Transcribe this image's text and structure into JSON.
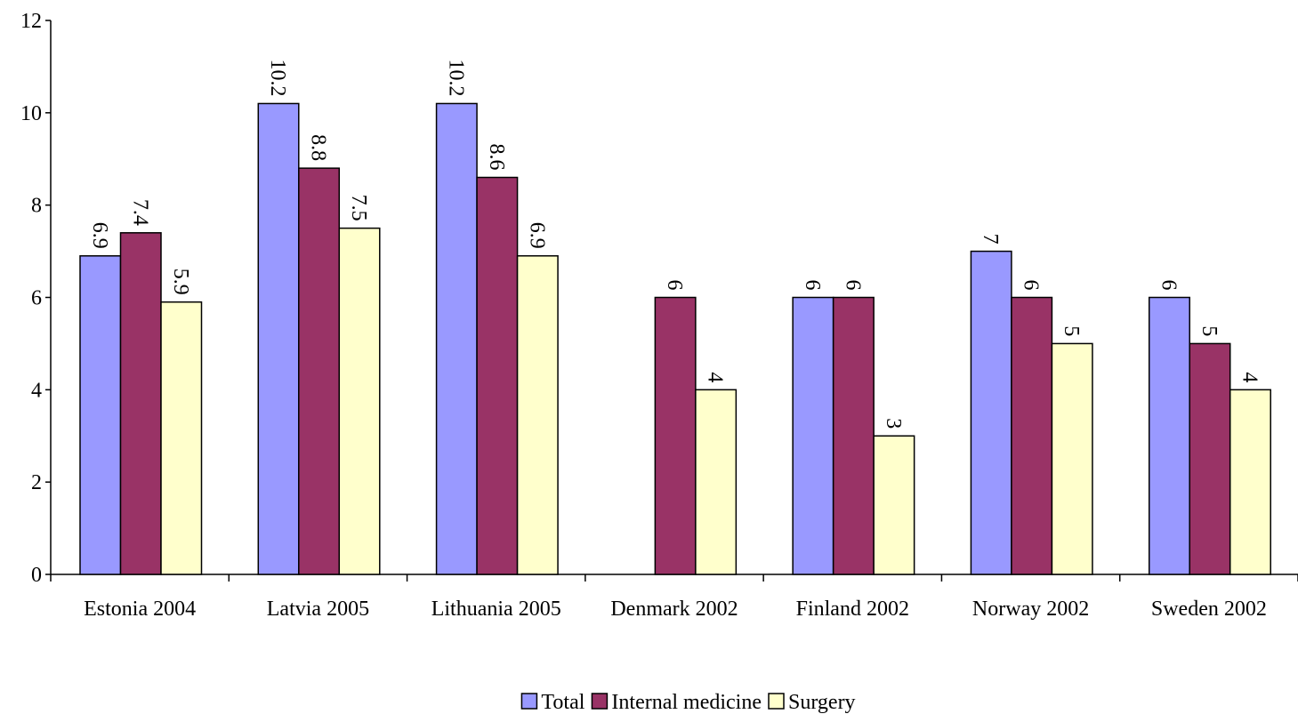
{
  "chart_data": {
    "type": "bar",
    "categories": [
      "Estonia 2004",
      "Latvia 2005",
      "Lithuania 2005",
      "Denmark 2002",
      "Finland 2002",
      "Norway 2002",
      "Sweden 2002"
    ],
    "series": [
      {
        "name": "Total",
        "color": "#9999ff",
        "values": [
          6.9,
          10.2,
          10.2,
          null,
          6,
          7,
          6
        ]
      },
      {
        "name": "Internal medicine",
        "color": "#993366",
        "values": [
          7.4,
          8.8,
          8.6,
          6,
          6,
          6,
          5
        ]
      },
      {
        "name": "Surgery",
        "color": "#ffffcc",
        "values": [
          5.9,
          7.5,
          6.9,
          4,
          3,
          5,
          4
        ]
      }
    ],
    "ylim": [
      0,
      12
    ],
    "yticks": [
      0,
      2,
      4,
      6,
      8,
      10,
      12
    ],
    "legend": "bottom"
  }
}
